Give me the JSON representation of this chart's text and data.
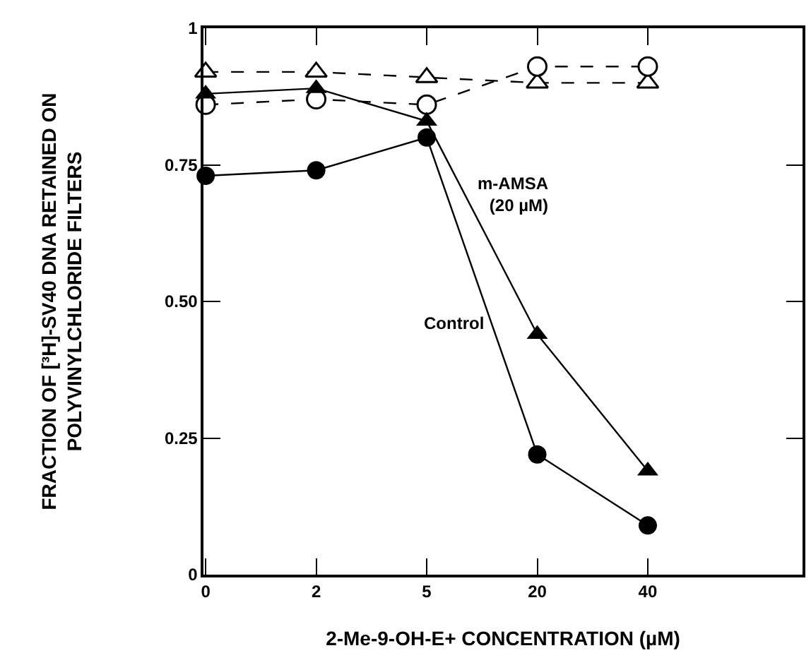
{
  "chart_data": {
    "type": "line",
    "xlabel": "2-Me-9-OH-E+ CONCENTRATION (µM)",
    "ylabel": "FRACTION OF [³H]-SV40 DNA RETAINED ON\nPOLYVINYLCHLORIDE FILTERS",
    "categories": [
      "0",
      "2",
      "5",
      "20",
      "40"
    ],
    "series": [
      {
        "color": "#000000",
        "marker": "triangle-open",
        "line_style": "dashed",
        "values": [
          0.92,
          0.92,
          0.91,
          0.9,
          0.9
        ]
      },
      {
        "color": "#000000",
        "marker": "circle-open",
        "line_style": "dashed",
        "values": [
          0.86,
          0.87,
          0.86,
          0.93,
          0.93
        ]
      },
      {
        "name": "m-AMSA (20 µM)",
        "color": "#000000",
        "marker": "triangle",
        "line_style": "solid",
        "values": [
          0.88,
          0.89,
          0.83,
          0.44,
          0.19
        ]
      },
      {
        "name": "Control",
        "color": "#000000",
        "marker": "circle",
        "line_style": "solid",
        "values": [
          0.73,
          0.74,
          0.8,
          0.22,
          0.09
        ]
      }
    ],
    "ylim": [
      0,
      1
    ],
    "yticks": [
      0,
      0.25,
      {
        "value": 0.5,
        "label": "0.50"
      },
      0.75,
      1
    ],
    "legend": false
  }
}
